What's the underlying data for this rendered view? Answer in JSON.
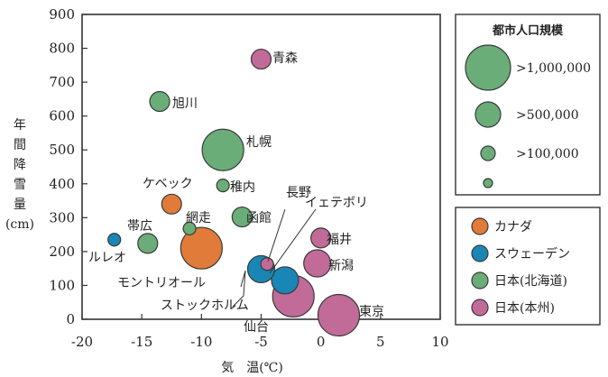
{
  "chart_data": {
    "type": "scatter",
    "xlabel": "気　温(℃)",
    "ylabel": "年間降雪量(cm)",
    "ylabel_lines": [
      "年",
      "間",
      "降",
      "雪",
      "量",
      "(cm)"
    ],
    "xlim": [
      -20,
      10
    ],
    "ylim": [
      0,
      900
    ],
    "x_ticks": [
      "-20",
      "-15",
      "-10",
      "-5",
      "0",
      "5",
      "10"
    ],
    "y_ticks": [
      "0",
      "100",
      "200",
      "300",
      "400",
      "500",
      "600",
      "700",
      "800",
      "900"
    ],
    "grid": false,
    "size_legend": {
      "title": "都市人口規模",
      "entries": [
        ">1,000,000",
        ">500,000",
        ">100,000",
        ""
      ]
    },
    "legend": {
      "placement": "right",
      "entries": [
        "カナダ",
        "スウェーデン",
        "日本(北海道)",
        "日本(本州)"
      ]
    },
    "colors": {
      "カナダ": "#e07b39",
      "スウェーデン": "#1a86b5",
      "日本(北海道)": "#6aad78",
      "日本(本州)": "#c26b98"
    },
    "points": [
      {
        "name": "青森",
        "x": -5.0,
        "y": 768,
        "group": "日本(本州)",
        "size": 1
      },
      {
        "name": "旭川",
        "x": -13.5,
        "y": 643,
        "group": "日本(北海道)",
        "size": 1
      },
      {
        "name": "札幌",
        "x": -8.2,
        "y": 500,
        "group": "日本(北海道)",
        "size": 3
      },
      {
        "name": "ケベック",
        "x": -12.5,
        "y": 340,
        "group": "カナダ",
        "size": 1
      },
      {
        "name": "稚内",
        "x": -8.2,
        "y": 395,
        "group": "日本(北海道)",
        "size": 0
      },
      {
        "name": "長野",
        "x": -4.5,
        "y": 163,
        "group": "日本(本州)",
        "size": 0
      },
      {
        "name": "イェテボリ",
        "x": -3.0,
        "y": 115,
        "group": "スウェーデン",
        "size": 2
      },
      {
        "name": "帯広",
        "x": -14.5,
        "y": 224,
        "group": "日本(北海道)",
        "size": 1
      },
      {
        "name": "網走",
        "x": -11.0,
        "y": 268,
        "group": "日本(北海道)",
        "size": 0
      },
      {
        "name": "函館",
        "x": -6.6,
        "y": 302,
        "group": "日本(北海道)",
        "size": 1
      },
      {
        "name": "福井",
        "x": 0.0,
        "y": 240,
        "group": "日本(本州)",
        "size": 1
      },
      {
        "name": "ルレオ",
        "x": -17.3,
        "y": 235,
        "group": "スウェーデン",
        "size": 0
      },
      {
        "name": "モントリオール",
        "x": -10.0,
        "y": 210,
        "group": "カナダ",
        "size": 3
      },
      {
        "name": "ストックホルム",
        "x": -5.0,
        "y": 148,
        "group": "スウェーデン",
        "size": 2
      },
      {
        "name": "新潟",
        "x": -0.3,
        "y": 165,
        "group": "日本(本州)",
        "size": 2
      },
      {
        "name": "仙台",
        "x": -2.3,
        "y": 68,
        "group": "日本(本州)",
        "size": 3
      },
      {
        "name": "東京",
        "x": 1.5,
        "y": 12,
        "group": "日本(本州)",
        "size": 3
      }
    ]
  }
}
